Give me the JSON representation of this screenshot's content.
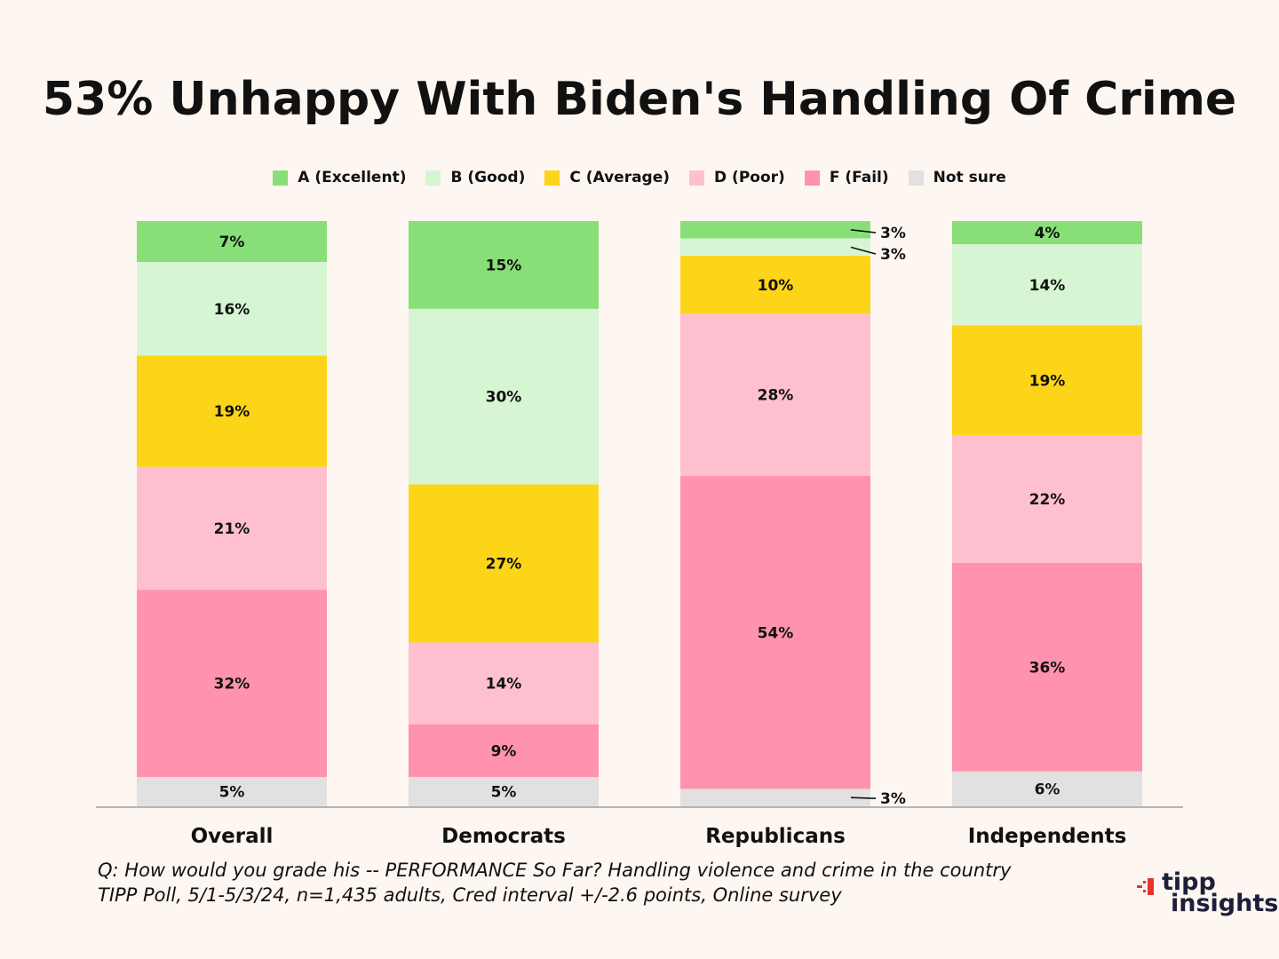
{
  "chart_data": {
    "type": "bar",
    "stacked": true,
    "title": "53% Unhappy With Biden's Handling Of Crime",
    "categories": [
      "Overall",
      "Democrats",
      "Republicans",
      "Independents"
    ],
    "series": [
      {
        "name": "A (Excellent)",
        "color": "#88df77",
        "values": [
          7,
          15,
          3,
          4
        ]
      },
      {
        "name": "B (Good)",
        "color": "#d6f5d3",
        "values": [
          16,
          30,
          3,
          14
        ]
      },
      {
        "name": "C (Average)",
        "color": "#fdd518",
        "values": [
          19,
          27,
          10,
          19
        ]
      },
      {
        "name": "D (Poor)",
        "color": "#fec0cf",
        "values": [
          21,
          14,
          28,
          22
        ]
      },
      {
        "name": "F (Fail)",
        "color": "#ff93ad",
        "values": [
          32,
          9,
          54,
          36
        ]
      },
      {
        "name": "Not sure",
        "color": "#e2e0e0",
        "values": [
          5,
          5,
          3,
          6
        ]
      }
    ],
    "value_format": "{v}%",
    "ylim": [
      0,
      100
    ],
    "legend_position": "top",
    "grid": false
  },
  "footnotes": {
    "question": "Q:  How would you grade his -- PERFORMANCE So Far? Handling violence and crime in the country",
    "source": "TIPP Poll, 5/1-5/3/24, n=1,435 adults, Cred interval +/-2.6 points, Online survey"
  },
  "logo": {
    "top": "tipp",
    "bottom": "insights",
    "accent": "#e8322b",
    "text_color": "#1d1f3a"
  },
  "colors": {
    "background": "#fdf6f1",
    "axis": "#b5b5b5"
  }
}
